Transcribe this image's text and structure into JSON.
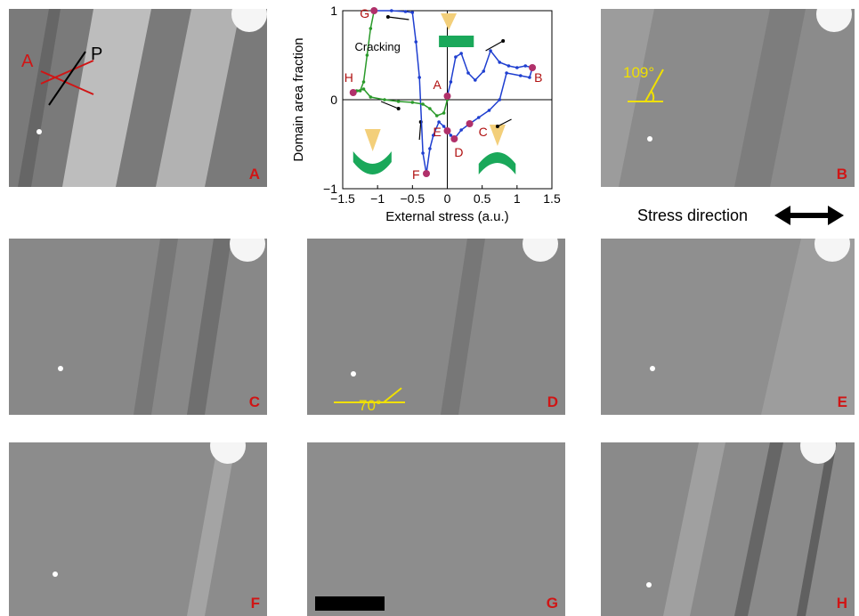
{
  "chart_data": {
    "type": "line",
    "xlabel": "External stress (a.u.)",
    "ylabel": "Domain area fraction",
    "xlim": [
      -1.5,
      1.5
    ],
    "ylim": [
      -1,
      1
    ],
    "xticks": [
      "−1.5",
      "−1",
      "−0.5",
      "0",
      "0.5",
      "1",
      "1.5"
    ],
    "yticks": [
      "1",
      "0",
      "−1"
    ],
    "grid": false,
    "series": [
      {
        "color": "#1f3fd0",
        "points": [
          [
            0.0,
            0.04
          ],
          [
            0.05,
            0.2
          ],
          [
            0.12,
            0.48
          ],
          [
            0.2,
            0.52
          ],
          [
            0.3,
            0.3
          ],
          [
            0.4,
            0.22
          ],
          [
            0.52,
            0.32
          ],
          [
            0.62,
            0.55
          ],
          [
            0.75,
            0.42
          ],
          [
            0.88,
            0.38
          ],
          [
            1.0,
            0.36
          ],
          [
            1.12,
            0.38
          ],
          [
            1.22,
            0.36
          ],
          [
            1.18,
            0.25
          ],
          [
            1.05,
            0.27
          ],
          [
            0.85,
            0.3
          ],
          [
            0.75,
            0.0
          ],
          [
            0.6,
            -0.12
          ],
          [
            0.45,
            -0.2
          ],
          [
            0.32,
            -0.27
          ],
          [
            0.2,
            -0.34
          ],
          [
            0.1,
            -0.44
          ],
          [
            0.05,
            -0.4
          ],
          [
            0.0,
            -0.35
          ],
          [
            -0.05,
            -0.3
          ],
          [
            -0.12,
            -0.25
          ],
          [
            -0.2,
            -0.4
          ],
          [
            -0.25,
            -0.55
          ],
          [
            -0.3,
            -0.83
          ],
          [
            -0.35,
            -0.6
          ],
          [
            -0.4,
            0.25
          ],
          [
            -0.45,
            0.65
          ],
          [
            -0.5,
            0.98
          ],
          [
            -0.6,
            0.99
          ],
          [
            -0.8,
            1.0
          ],
          [
            -1.05,
            1.0
          ]
        ]
      },
      {
        "color": "#2a9a2a",
        "points": [
          [
            -1.05,
            1.0
          ],
          [
            -1.1,
            0.8
          ],
          [
            -1.15,
            0.5
          ],
          [
            -1.2,
            0.2
          ],
          [
            -1.25,
            0.1
          ],
          [
            -1.35,
            0.08
          ],
          [
            -1.3,
            0.1
          ],
          [
            -1.2,
            0.12
          ],
          [
            -1.1,
            0.03
          ],
          [
            -0.9,
            0.0
          ],
          [
            -0.7,
            -0.02
          ],
          [
            -0.5,
            -0.03
          ],
          [
            -0.35,
            -0.05
          ],
          [
            -0.25,
            -0.1
          ],
          [
            -0.15,
            -0.18
          ],
          [
            -0.05,
            -0.15
          ],
          [
            0.0,
            0.0
          ]
        ]
      }
    ],
    "annotations": [
      {
        "text": "A",
        "x": 0.0,
        "y": 0.04
      },
      {
        "text": "B",
        "x": 1.22,
        "y": 0.36
      },
      {
        "text": "C",
        "x": 0.32,
        "y": -0.27
      },
      {
        "text": "D",
        "x": 0.1,
        "y": -0.44
      },
      {
        "text": "E",
        "x": 0.0,
        "y": -0.35
      },
      {
        "text": "F",
        "x": -0.3,
        "y": -0.83
      },
      {
        "text": "G",
        "x": -1.05,
        "y": 1.0
      },
      {
        "text": "H",
        "x": -1.35,
        "y": 0.08
      },
      {
        "text": "Cracking",
        "x": -1.0,
        "y": 0.55
      }
    ]
  },
  "panels": [
    "A",
    "B",
    "C",
    "D",
    "E",
    "F",
    "G",
    "H"
  ],
  "polarizer_labels": {
    "analyzer": "A",
    "polarizer": "P"
  },
  "angle_labels": {
    "b": "109°",
    "d": "70°"
  },
  "stress_direction": "Stress direction",
  "colors": {
    "marker_red": "#d01515",
    "angle_yellow": "#f0e000",
    "series_blue": "#1f3fd0",
    "series_green": "#2a9a2a"
  }
}
